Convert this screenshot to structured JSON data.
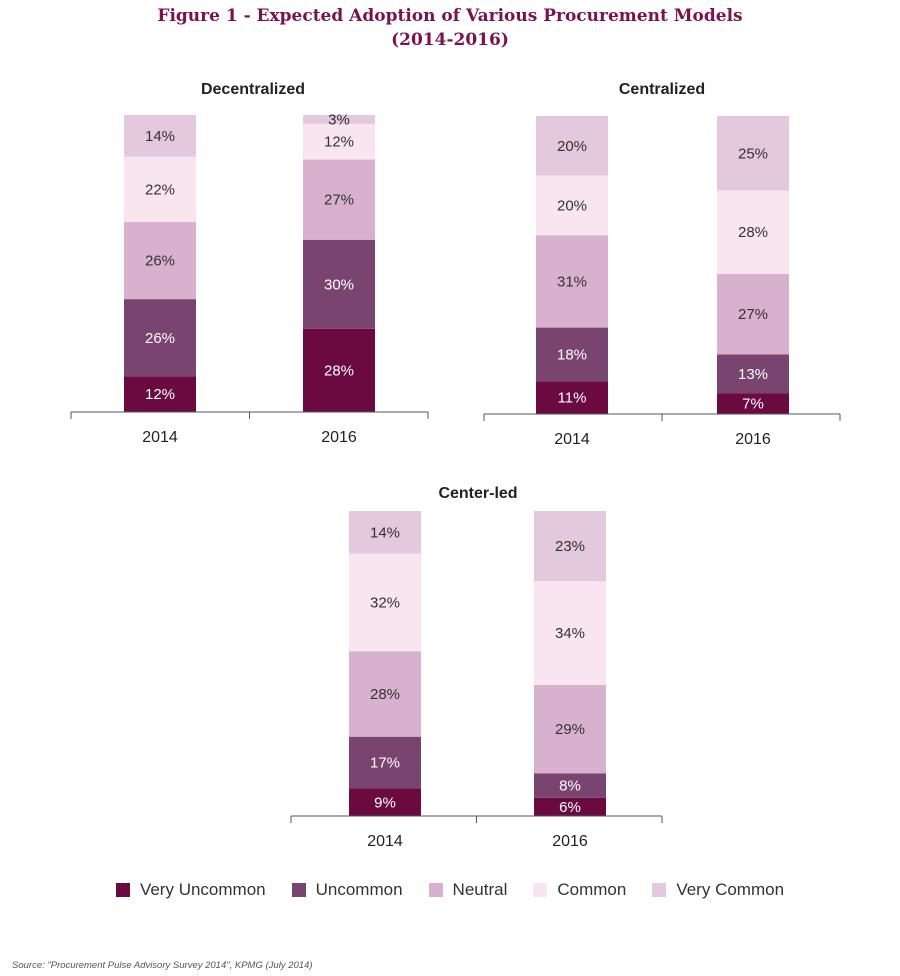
{
  "figure": {
    "title_line1": "Figure 1 - Expected Adoption of Various Procurement Models",
    "title_line2": "(2014-2016)",
    "source": "Source: \"Procurement Pulse Advisory Survey 2014\", KPMG (July 2014)"
  },
  "colors": {
    "Very Uncommon": "#6b0a40",
    "Uncommon": "#7a4470",
    "Neutral": "#d8b1cf",
    "Common": "#f9e5ef",
    "Very Common": "#e3c8de"
  },
  "legend": [
    "Very Uncommon",
    "Uncommon",
    "Neutral",
    "Common",
    "Very Common"
  ],
  "chart_data": [
    {
      "type": "bar",
      "stacked": true,
      "title": "Decentralized",
      "categories": [
        "2014",
        "2016"
      ],
      "value_unit": "%",
      "series": [
        {
          "name": "Very Uncommon",
          "values": [
            12,
            28
          ]
        },
        {
          "name": "Uncommon",
          "values": [
            26,
            30
          ]
        },
        {
          "name": "Neutral",
          "values": [
            26,
            27
          ]
        },
        {
          "name": "Common",
          "values": [
            22,
            12
          ]
        },
        {
          "name": "Very Common",
          "values": [
            14,
            3
          ]
        }
      ]
    },
    {
      "type": "bar",
      "stacked": true,
      "title": "Centralized",
      "categories": [
        "2014",
        "2016"
      ],
      "value_unit": "%",
      "series": [
        {
          "name": "Very Uncommon",
          "values": [
            11,
            7
          ]
        },
        {
          "name": "Uncommon",
          "values": [
            18,
            13
          ]
        },
        {
          "name": "Neutral",
          "values": [
            31,
            27
          ]
        },
        {
          "name": "Common",
          "values": [
            20,
            28
          ]
        },
        {
          "name": "Very Common",
          "values": [
            20,
            25
          ]
        }
      ]
    },
    {
      "type": "bar",
      "stacked": true,
      "title": "Center-led",
      "categories": [
        "2014",
        "2016"
      ],
      "value_unit": "%",
      "series": [
        {
          "name": "Very Uncommon",
          "values": [
            9,
            6
          ]
        },
        {
          "name": "Uncommon",
          "values": [
            17,
            8
          ]
        },
        {
          "name": "Neutral",
          "values": [
            28,
            29
          ]
        },
        {
          "name": "Common",
          "values": [
            32,
            34
          ]
        },
        {
          "name": "Very Common",
          "values": [
            14,
            23
          ]
        }
      ]
    }
  ]
}
